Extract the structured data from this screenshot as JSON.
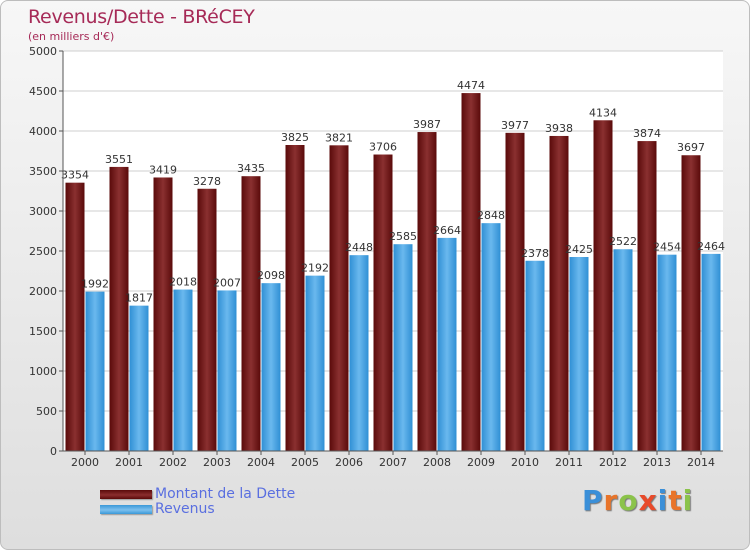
{
  "title": "Revenus/Dette - BRéCEY",
  "subtitle": "(en milliers d'€)",
  "colors": {
    "dette": "#7a1f1f",
    "revenus": "#4aa6e6",
    "title": "#a62a57",
    "legend_text": "#5a6fe0"
  },
  "legend": {
    "dette_label": "Montant de la Dette",
    "revenus_label": "Revenus"
  },
  "logo": {
    "text": "Proxiti"
  },
  "chart_data": {
    "type": "bar",
    "title": "Revenus/Dette - BRéCEY",
    "subtitle": "(en milliers d'€)",
    "categories": [
      "2000",
      "2001",
      "2002",
      "2003",
      "2004",
      "2005",
      "2006",
      "2007",
      "2008",
      "2009",
      "2010",
      "2011",
      "2012",
      "2013",
      "2014"
    ],
    "series": [
      {
        "name": "Montant de la Dette",
        "values": [
          3354,
          3551,
          3419,
          3278,
          3435,
          3825,
          3821,
          3706,
          3987,
          4474,
          3977,
          3938,
          4134,
          3874,
          3697
        ]
      },
      {
        "name": "Revenus",
        "values": [
          1992,
          1817,
          2018,
          2007,
          2098,
          2192,
          2448,
          2585,
          2664,
          2848,
          2378,
          2425,
          2522,
          2454,
          2464
        ]
      }
    ],
    "ylim": [
      0,
      5000
    ],
    "yticks": [
      0,
      500,
      1000,
      1500,
      2000,
      2500,
      3000,
      3500,
      4000,
      4500,
      5000
    ],
    "grid": true,
    "legend_position": "bottom-left"
  }
}
